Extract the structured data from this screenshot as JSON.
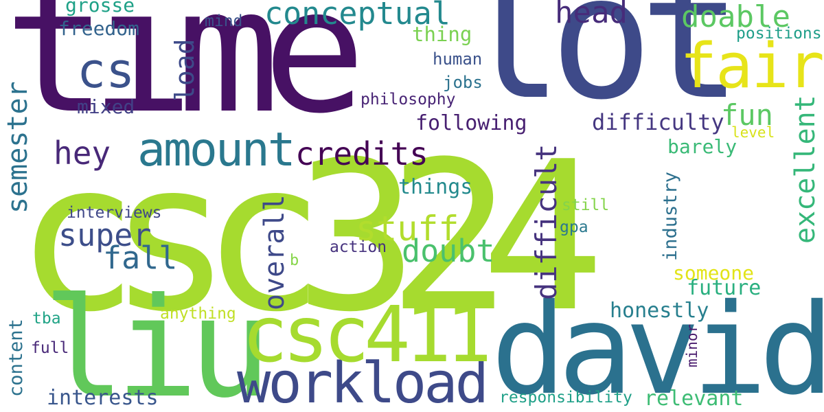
{
  "words": [
    {
      "text": "csc324",
      "color": "#a6db2f"
    },
    {
      "text": "time",
      "color": "#471164"
    },
    {
      "text": "lot",
      "color": "#3e4a89"
    },
    {
      "text": "david",
      "color": "#2b718e"
    },
    {
      "text": "liu",
      "color": "#61c85a"
    },
    {
      "text": "workload",
      "color": "#3e4a89"
    },
    {
      "text": "csc411",
      "color": "#a6db2f"
    },
    {
      "text": "fair",
      "color": "#e7e419"
    },
    {
      "text": "cs",
      "color": "#3b528b"
    },
    {
      "text": "amount",
      "color": "#2a788e"
    },
    {
      "text": "conceptual",
      "color": "#23898e"
    },
    {
      "text": "head",
      "color": "#472c7a"
    },
    {
      "text": "doable",
      "color": "#5cc863"
    },
    {
      "text": "credits",
      "color": "#440154"
    },
    {
      "text": "hey",
      "color": "#482878"
    },
    {
      "text": "semester",
      "color": "#2c728e"
    },
    {
      "text": "super",
      "color": "#3d4e8a"
    },
    {
      "text": "fall",
      "color": "#31688e"
    },
    {
      "text": "stuff",
      "color": "#b2dd2d"
    },
    {
      "text": "doubt",
      "color": "#4ac16d"
    },
    {
      "text": "overall",
      "color": "#3e4989"
    },
    {
      "text": "difficult",
      "color": "#46337e"
    },
    {
      "text": "excellent",
      "color": "#35b779"
    },
    {
      "text": "fun",
      "color": "#5cc863"
    },
    {
      "text": "difficulty",
      "color": "#453781"
    },
    {
      "text": "load",
      "color": "#3e4a89"
    },
    {
      "text": "following",
      "color": "#482071"
    },
    {
      "text": "freedom",
      "color": "#33638d"
    },
    {
      "text": "grosse",
      "color": "#1fa187"
    },
    {
      "text": "mixed",
      "color": "#424086"
    },
    {
      "text": "mind",
      "color": "#3b528b"
    },
    {
      "text": "thing",
      "color": "#7ad151"
    },
    {
      "text": "human",
      "color": "#3b528b"
    },
    {
      "text": "jobs",
      "color": "#2c728e"
    },
    {
      "text": "philosophy",
      "color": "#482475"
    },
    {
      "text": "positions",
      "color": "#1f9e89"
    },
    {
      "text": "level",
      "color": "#d8e219"
    },
    {
      "text": "barely",
      "color": "#3aba76"
    },
    {
      "text": "industry",
      "color": "#2d708e"
    },
    {
      "text": "things",
      "color": "#238a8d"
    },
    {
      "text": "interviews",
      "color": "#3f4788"
    },
    {
      "text": "still",
      "color": "#84d44b"
    },
    {
      "text": "gpa",
      "color": "#2a788e"
    },
    {
      "text": "action",
      "color": "#46327e"
    },
    {
      "text": "b",
      "color": "#86d549"
    },
    {
      "text": "someone",
      "color": "#e2e418"
    },
    {
      "text": "future",
      "color": "#29af7f"
    },
    {
      "text": "honestly",
      "color": "#277f8e"
    },
    {
      "text": "minor",
      "color": "#481a6c"
    },
    {
      "text": "content",
      "color": "#2c728e"
    },
    {
      "text": "tba",
      "color": "#20a386"
    },
    {
      "text": "anything",
      "color": "#c0df25"
    },
    {
      "text": "full",
      "color": "#482878"
    },
    {
      "text": "interests",
      "color": "#39568c"
    },
    {
      "text": "responsibility",
      "color": "#1fa088"
    },
    {
      "text": "relevant",
      "color": "#3dbc74"
    }
  ]
}
